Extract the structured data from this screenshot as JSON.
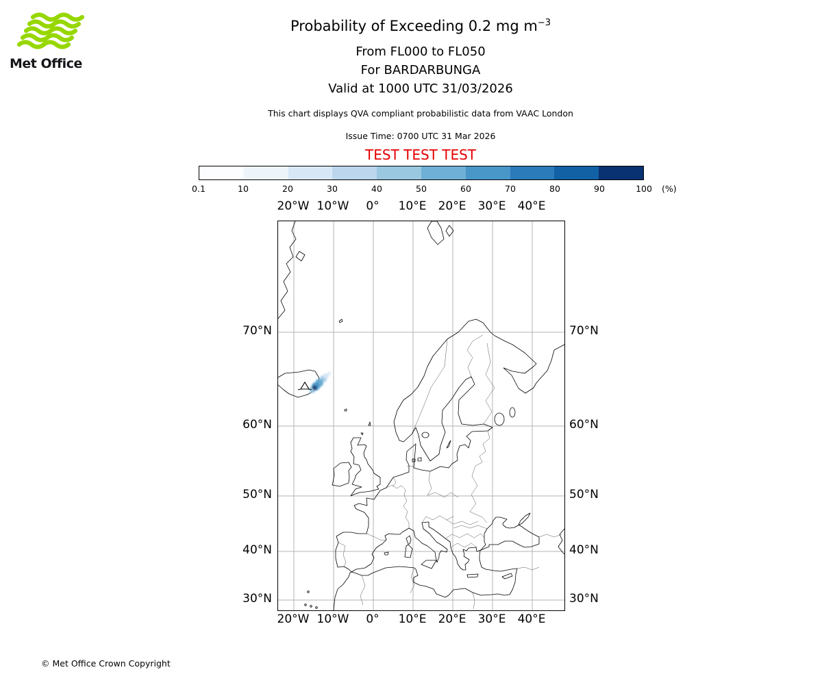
{
  "logo": {
    "text": "Met Office",
    "green": "#97d700"
  },
  "header": {
    "title_main": "Probability of Exceeding 0.2 mg m",
    "title_sup": "−3",
    "subtitle1": "From FL000 to FL050",
    "subtitle2": "For BARDARBUNGA",
    "subtitle3": "Valid at 1000 UTC 31/03/2026",
    "note": "This chart displays QVA compliant probabilistic data from VAAC London",
    "issue_time": "Issue Time: 0700 UTC 31 Mar 2026",
    "test_banner": "TEST TEST TEST",
    "test_color": "#e60000"
  },
  "colorbar": {
    "ticks": [
      "0.1",
      "10",
      "20",
      "30",
      "40",
      "50",
      "60",
      "70",
      "80",
      "90",
      "100"
    ],
    "unit_label": "(%)",
    "colors": [
      "#fbfdff",
      "#edf4fa",
      "#d8e7f5",
      "#bcd7ed",
      "#9ac8e0",
      "#6fb0d7",
      "#4997c9",
      "#2b7bba",
      "#1261a5",
      "#083271"
    ]
  },
  "map": {
    "lon_labels": [
      "20°W",
      "10°W",
      "0°",
      "10°E",
      "20°E",
      "30°E",
      "40°E"
    ],
    "lat_labels": [
      "70°N",
      "60°N",
      "50°N",
      "40°N",
      "30°N"
    ]
  },
  "footer": {
    "copyright": "© Met Office Crown Copyright"
  },
  "chart_data": {
    "type": "heatmap",
    "title": "Probability of Exceeding 0.2 mg m−3",
    "subtitle": [
      "From FL000 to FL050",
      "For BARDARBUNGA",
      "Valid at 1000 UTC 31/03/2026"
    ],
    "source": "VAAC London",
    "issue_time": "0700 UTC 31 Mar 2026",
    "valid_time": "1000 UTC 31/03/2026",
    "flight_levels": "FL000 to FL050",
    "unit": "%",
    "levels_percent": [
      0.1,
      10,
      20,
      30,
      40,
      50,
      60,
      70,
      80,
      90,
      100
    ],
    "projection": "mercator",
    "lon_range_deg": [
      -24,
      48
    ],
    "lat_range_deg": [
      27.7,
      77.7
    ],
    "grid_lons_deg": [
      -20,
      -10,
      0,
      10,
      20,
      30,
      40
    ],
    "grid_lats_deg": [
      30,
      40,
      50,
      60,
      70
    ],
    "volcano": {
      "name": "BARDARBUNGA",
      "lon_deg": -17.5,
      "lat_deg": 64.6
    },
    "ash_cloud": {
      "description": "Probability contours over and northeast of eastern Iceland",
      "center_lon_deg": -16.5,
      "center_lat_deg": 64.9,
      "extent_deg": 2.5,
      "max_bin_percent": [
        70,
        100
      ]
    }
  }
}
